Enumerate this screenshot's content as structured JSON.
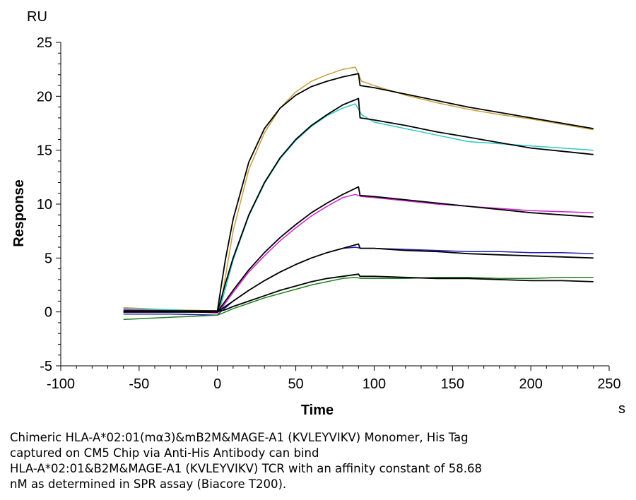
{
  "chart_data": {
    "type": "line",
    "xlabel": "Time",
    "x_unit": "s",
    "ylabel": "Response",
    "y_unit": "RU",
    "xlim": [
      -100,
      250
    ],
    "ylim": [
      -5,
      25
    ],
    "x_ticks": [
      -100,
      -50,
      0,
      50,
      100,
      150,
      200,
      250
    ],
    "y_ticks": [
      -5,
      0,
      5,
      10,
      15,
      20,
      25
    ],
    "grid": false,
    "legend": "none",
    "series": [
      {
        "color": "#c8a040",
        "role": "measured",
        "x": [
          -60,
          -30,
          0,
          2,
          10,
          20,
          30,
          40,
          50,
          60,
          70,
          80,
          88,
          92,
          100,
          120,
          140,
          160,
          180,
          200,
          220,
          240
        ],
        "y": [
          0.4,
          0.2,
          0.1,
          0.6,
          7.5,
          13.2,
          16.6,
          18.9,
          20.4,
          21.4,
          22.0,
          22.5,
          22.7,
          21.4,
          21.0,
          20.1,
          19.4,
          18.8,
          18.3,
          17.9,
          17.4,
          16.9
        ]
      },
      {
        "color": "#30c8c8",
        "role": "measured",
        "x": [
          -60,
          -30,
          0,
          2,
          10,
          20,
          30,
          40,
          50,
          60,
          70,
          80,
          88,
          92,
          100,
          120,
          140,
          160,
          180,
          200,
          220,
          240
        ],
        "y": [
          0.3,
          0.2,
          0.0,
          0.5,
          4.8,
          8.9,
          11.9,
          14.2,
          15.9,
          17.2,
          18.2,
          18.9,
          19.3,
          18.3,
          17.6,
          17.0,
          16.4,
          15.8,
          15.6,
          15.4,
          15.2,
          15.0
        ]
      },
      {
        "color": "#d020d0",
        "role": "measured",
        "x": [
          -60,
          -30,
          0,
          2,
          10,
          20,
          30,
          40,
          50,
          60,
          70,
          80,
          88,
          92,
          100,
          120,
          140,
          160,
          180,
          200,
          220,
          240
        ],
        "y": [
          0.2,
          0.1,
          -0.1,
          0.2,
          1.8,
          3.7,
          5.2,
          6.6,
          7.8,
          8.9,
          9.8,
          10.6,
          10.9,
          10.7,
          10.6,
          10.3,
          10.0,
          9.8,
          9.6,
          9.4,
          9.3,
          9.2
        ]
      },
      {
        "color": "#2020b0",
        "role": "measured",
        "x": [
          -60,
          -30,
          0,
          2,
          10,
          20,
          30,
          40,
          50,
          60,
          70,
          80,
          88,
          92,
          100,
          120,
          140,
          160,
          180,
          200,
          220,
          240
        ],
        "y": [
          -0.2,
          -0.2,
          -0.3,
          0.0,
          1.0,
          2.0,
          2.9,
          3.7,
          4.4,
          5.0,
          5.5,
          5.9,
          6.0,
          5.9,
          5.9,
          5.8,
          5.7,
          5.6,
          5.6,
          5.5,
          5.5,
          5.4
        ]
      },
      {
        "color": "#208020",
        "role": "measured",
        "x": [
          -60,
          -30,
          0,
          2,
          10,
          20,
          30,
          40,
          50,
          60,
          70,
          80,
          88,
          92,
          100,
          120,
          140,
          160,
          180,
          200,
          220,
          240
        ],
        "y": [
          -0.7,
          -0.5,
          -0.3,
          -0.2,
          0.3,
          0.8,
          1.3,
          1.7,
          2.1,
          2.5,
          2.8,
          3.1,
          3.2,
          3.1,
          3.1,
          3.1,
          3.2,
          3.2,
          3.1,
          3.1,
          3.2,
          3.2
        ]
      },
      {
        "color": "#000000",
        "role": "fit",
        "x": [
          -60,
          -30,
          0,
          2,
          5,
          10,
          20,
          30,
          40,
          50,
          60,
          70,
          80,
          90,
          91,
          100,
          120,
          140,
          160,
          180,
          200,
          220,
          240
        ],
        "y": [
          0.1,
          0.1,
          0.1,
          2.0,
          4.8,
          8.6,
          13.9,
          17.0,
          18.9,
          20.1,
          20.9,
          21.4,
          21.8,
          22.1,
          21.0,
          20.8,
          20.2,
          19.6,
          19.0,
          18.5,
          18.0,
          17.5,
          17.0
        ]
      },
      {
        "color": "#000000",
        "role": "fit",
        "x": [
          -60,
          -30,
          0,
          2,
          5,
          10,
          20,
          30,
          40,
          50,
          60,
          70,
          80,
          90,
          91,
          100,
          120,
          140,
          160,
          180,
          200,
          220,
          240
        ],
        "y": [
          0.0,
          0.0,
          0.0,
          1.0,
          2.6,
          5.0,
          9.0,
          12.0,
          14.3,
          16.0,
          17.3,
          18.3,
          19.2,
          19.8,
          18.0,
          17.8,
          17.3,
          16.7,
          16.2,
          15.7,
          15.2,
          14.9,
          14.6
        ]
      },
      {
        "color": "#000000",
        "role": "fit",
        "x": [
          -60,
          -30,
          0,
          2,
          5,
          10,
          20,
          30,
          40,
          50,
          60,
          70,
          80,
          90,
          91,
          100,
          120,
          140,
          160,
          180,
          200,
          220,
          240
        ],
        "y": [
          0.0,
          0.0,
          0.0,
          0.4,
          1.0,
          2.0,
          3.9,
          5.5,
          6.9,
          8.1,
          9.2,
          10.1,
          10.9,
          11.6,
          10.8,
          10.7,
          10.4,
          10.1,
          9.8,
          9.5,
          9.2,
          9.0,
          8.8
        ]
      },
      {
        "color": "#000000",
        "role": "fit",
        "x": [
          -60,
          -30,
          0,
          2,
          5,
          10,
          20,
          30,
          40,
          50,
          60,
          70,
          80,
          90,
          91,
          100,
          120,
          140,
          160,
          180,
          200,
          220,
          240
        ],
        "y": [
          0.0,
          0.0,
          0.0,
          0.2,
          0.5,
          1.0,
          2.0,
          2.9,
          3.7,
          4.4,
          5.0,
          5.5,
          5.9,
          6.3,
          5.9,
          5.9,
          5.7,
          5.6,
          5.4,
          5.3,
          5.2,
          5.1,
          5.0
        ]
      },
      {
        "color": "#000000",
        "role": "fit",
        "x": [
          -60,
          -30,
          0,
          2,
          5,
          10,
          20,
          30,
          40,
          50,
          60,
          70,
          80,
          90,
          91,
          100,
          120,
          140,
          160,
          180,
          200,
          220,
          240
        ],
        "y": [
          0.0,
          0.0,
          0.0,
          0.1,
          0.2,
          0.5,
          1.0,
          1.5,
          2.0,
          2.4,
          2.8,
          3.1,
          3.3,
          3.5,
          3.3,
          3.3,
          3.2,
          3.1,
          3.1,
          3.0,
          2.9,
          2.9,
          2.8
        ]
      }
    ]
  },
  "caption": {
    "lines": [
      "Chimeric HLA-A*02:01(mα3)&mB2M&MAGE-A1 (KVLEYVIKV) Monomer, His Tag",
      "captured on CM5 Chip via Anti-His Antibody can bind",
      "HLA-A*02:01&B2M&MAGE-A1 (KVLEYVIKV) TCR with an affinity constant of 58.68",
      "nM as determined in SPR assay (Biacore T200)."
    ]
  }
}
